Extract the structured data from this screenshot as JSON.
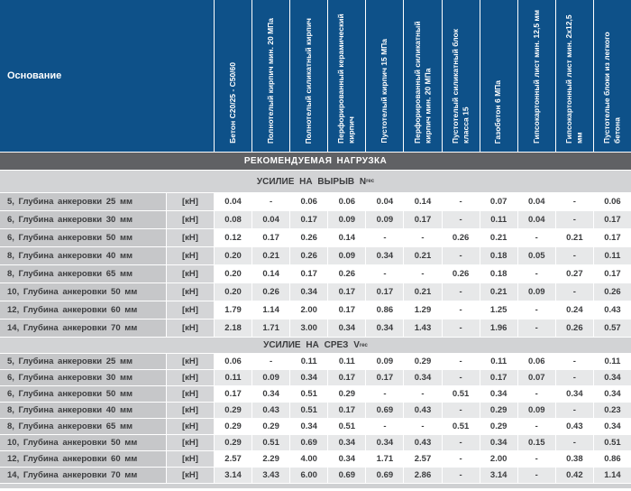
{
  "colors": {
    "header_blue": "#0e5189",
    "band_dark": "#606164",
    "band_light": "#d2d3d5",
    "label_gray": "#c6c7c9",
    "unit_gray": "#d4d5d7",
    "row_alt": "#e7e8e9",
    "row_white": "#ffffff",
    "text_dark": "#3b3c3e",
    "header_text": "#ffffff"
  },
  "chart_data": {
    "type": "table",
    "title": "РЕКОМЕНДУЕМАЯ НАГРУЗКА",
    "row_header": "Основание",
    "unit": "[кН]",
    "columns": [
      "Бетон C20/25 - C50/60",
      "Полнотелый кирпич мин. 20 МПа",
      "Полнотелый силикатный кирпич",
      "Перфорированный керамический кирпич",
      "Пустотелый кирпич 15 МПа",
      "Перфорированный силикатный кирпич мин. 20 МПа",
      "Пустотелый силикатный блок класса 15",
      "Газобетон 6 МПа",
      "Гипсокартонный лист мин. 12,5 мм",
      "Гипсокартонный лист мин. 2x12,5 мм",
      "Пустотелые блоки из легкого бетона"
    ],
    "sections": [
      {
        "title": "УСИЛИЕ НА ВЫРЫВ N",
        "title_subscript": "rec",
        "rows": [
          {
            "label": "5, Глубина анкеровки 25 мм",
            "values": [
              "0.04",
              "-",
              "0.06",
              "0.06",
              "0.04",
              "0.14",
              "-",
              "0.07",
              "0.04",
              "-",
              "0.06"
            ]
          },
          {
            "label": "6, Глубина анкеровки 30 мм",
            "values": [
              "0.08",
              "0.04",
              "0.17",
              "0.09",
              "0.09",
              "0.17",
              "-",
              "0.11",
              "0.04",
              "-",
              "0.17"
            ]
          },
          {
            "label": "6, Глубина анкеровки 50 мм",
            "values": [
              "0.12",
              "0.17",
              "0.26",
              "0.14",
              "-",
              "-",
              "0.26",
              "0.21",
              "-",
              "0.21",
              "0.17"
            ]
          },
          {
            "label": "8, Глубина анкеровки 40 мм",
            "values": [
              "0.20",
              "0.21",
              "0.26",
              "0.09",
              "0.34",
              "0.21",
              "-",
              "0.18",
              "0.05",
              "-",
              "0.11"
            ]
          },
          {
            "label": "8, Глубина анкеровки 65 мм",
            "values": [
              "0.20",
              "0.14",
              "0.17",
              "0.26",
              "-",
              "-",
              "0.26",
              "0.18",
              "-",
              "0.27",
              "0.17"
            ]
          },
          {
            "label": "10, Глубина анкеровки 50 мм",
            "values": [
              "0.20",
              "0.26",
              "0.34",
              "0.17",
              "0.17",
              "0.21",
              "-",
              "0.21",
              "0.09",
              "-",
              "0.26"
            ]
          },
          {
            "label": "12, Глубина анкеровки 60 мм",
            "values": [
              "1.79",
              "1.14",
              "2.00",
              "0.17",
              "0.86",
              "1.29",
              "-",
              "1.25",
              "-",
              "0.24",
              "0.43"
            ]
          },
          {
            "label": "14, Глубина анкеровки 70 мм",
            "values": [
              "2.18",
              "1.71",
              "3.00",
              "0.34",
              "0.34",
              "1.43",
              "-",
              "1.96",
              "-",
              "0.26",
              "0.57"
            ]
          }
        ]
      },
      {
        "title": "УСИЛИЕ НА СРЕЗ V",
        "title_subscript": "rec",
        "rows": [
          {
            "label": "5, Глубина анкеровки 25 мм",
            "values": [
              "0.06",
              "-",
              "0.11",
              "0.11",
              "0.09",
              "0.29",
              "-",
              "0.11",
              "0.06",
              "-",
              "0.11"
            ]
          },
          {
            "label": "6, Глубина анкеровки 30 мм",
            "values": [
              "0.11",
              "0.09",
              "0.34",
              "0.17",
              "0.17",
              "0.34",
              "-",
              "0.17",
              "0.07",
              "-",
              "0.34"
            ]
          },
          {
            "label": "6, Глубина анкеровки 50 мм",
            "values": [
              "0.17",
              "0.34",
              "0.51",
              "0.29",
              "-",
              "-",
              "0.51",
              "0.34",
              "-",
              "0.34",
              "0.34"
            ]
          },
          {
            "label": "8, Глубина анкеровки 40 мм",
            "values": [
              "0.29",
              "0.43",
              "0.51",
              "0.17",
              "0.69",
              "0.43",
              "-",
              "0.29",
              "0.09",
              "-",
              "0.23"
            ]
          },
          {
            "label": "8, Глубина анкеровки 65 мм",
            "values": [
              "0.29",
              "0.29",
              "0.34",
              "0.51",
              "-",
              "-",
              "0.51",
              "0.29",
              "-",
              "0.43",
              "0.34"
            ]
          },
          {
            "label": "10, Глубина анкеровки 50 мм",
            "values": [
              "0.29",
              "0.51",
              "0.69",
              "0.34",
              "0.34",
              "0.43",
              "-",
              "0.34",
              "0.15",
              "-",
              "0.51"
            ]
          },
          {
            "label": "12, Глубина анкеровки 60 мм",
            "values": [
              "2.57",
              "2.29",
              "4.00",
              "0.34",
              "1.71",
              "2.57",
              "-",
              "2.00",
              "-",
              "0.38",
              "0.86"
            ]
          },
          {
            "label": "14, Глубина анкеровки 70 мм",
            "values": [
              "3.14",
              "3.43",
              "6.00",
              "0.69",
              "0.69",
              "2.86",
              "-",
              "3.14",
              "-",
              "0.42",
              "1.14"
            ]
          }
        ]
      }
    ]
  }
}
